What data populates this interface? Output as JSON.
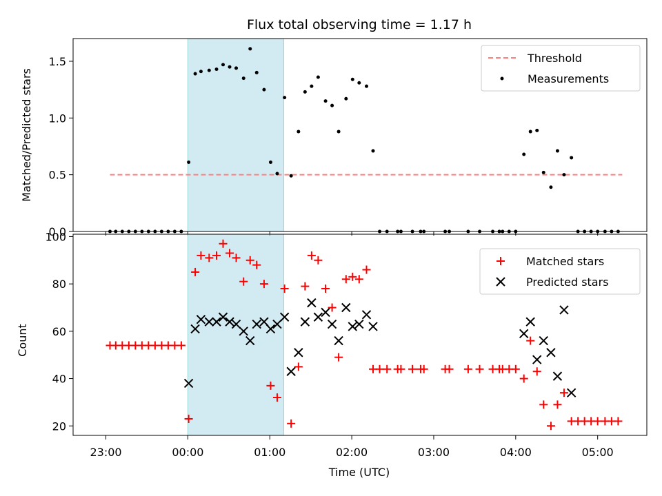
{
  "title": "Flux total observing time = 1.17 h",
  "xlabel": "Time (UTC)",
  "x_ticks": [
    "23:00",
    "00:00",
    "01:00",
    "02:00",
    "03:00",
    "04:00",
    "05:00"
  ],
  "colors": {
    "threshold": "#ff7f7f",
    "measurements": "#000000",
    "matched": "#ff0000",
    "predicted": "#000000",
    "highlight": "#add8e6"
  },
  "chart_data": [
    {
      "type": "scatter",
      "ylabel": "Matched/Predicted stars",
      "ylim": [
        0,
        1.7
      ],
      "y_ticks": [
        "0.0",
        "0.5",
        "1.0",
        "1.5"
      ],
      "y_tick_values": [
        0,
        0.5,
        1.0,
        1.5
      ],
      "xlim_hours": [
        -1.4,
        5.6
      ],
      "highlight_span_hours": [
        0.0,
        1.17
      ],
      "legend": {
        "placement": "top-right",
        "entries": [
          "Threshold",
          "Measurements"
        ]
      },
      "threshold": {
        "name": "Threshold",
        "value": 0.5,
        "x_range_hours": [
          -0.95,
          5.3
        ]
      },
      "series": [
        {
          "name": "Measurements",
          "points": [
            [
              -0.95,
              0
            ],
            [
              -0.88,
              0
            ],
            [
              -0.8,
              0
            ],
            [
              -0.72,
              0
            ],
            [
              -0.64,
              0
            ],
            [
              -0.56,
              0
            ],
            [
              -0.48,
              0
            ],
            [
              -0.4,
              0
            ],
            [
              -0.32,
              0
            ],
            [
              -0.24,
              0
            ],
            [
              -0.16,
              0
            ],
            [
              -0.08,
              0
            ],
            [
              0.01,
              0.61
            ],
            [
              0.09,
              1.39
            ],
            [
              0.16,
              1.41
            ],
            [
              0.26,
              1.42
            ],
            [
              0.35,
              1.43
            ],
            [
              0.43,
              1.47
            ],
            [
              0.51,
              1.45
            ],
            [
              0.59,
              1.44
            ],
            [
              0.68,
              1.35
            ],
            [
              0.76,
              1.61
            ],
            [
              0.84,
              1.4
            ],
            [
              0.93,
              1.25
            ],
            [
              1.01,
              0.61
            ],
            [
              1.09,
              0.51
            ],
            [
              1.18,
              1.18
            ],
            [
              1.26,
              0.49
            ],
            [
              1.35,
              0.88
            ],
            [
              1.43,
              1.23
            ],
            [
              1.51,
              1.28
            ],
            [
              1.59,
              1.36
            ],
            [
              1.68,
              1.15
            ],
            [
              1.76,
              1.11
            ],
            [
              1.84,
              0.88
            ],
            [
              1.93,
              1.17
            ],
            [
              2.01,
              1.34
            ],
            [
              2.09,
              1.31
            ],
            [
              2.18,
              1.28
            ],
            [
              2.26,
              0.71
            ],
            [
              2.34,
              0
            ],
            [
              2.43,
              0
            ],
            [
              2.56,
              0
            ],
            [
              2.6,
              0
            ],
            [
              2.74,
              0
            ],
            [
              2.84,
              0
            ],
            [
              2.88,
              0
            ],
            [
              3.14,
              0
            ],
            [
              3.19,
              0
            ],
            [
              3.42,
              0
            ],
            [
              3.56,
              0
            ],
            [
              3.72,
              0
            ],
            [
              3.8,
              0
            ],
            [
              3.84,
              0
            ],
            [
              3.92,
              0
            ],
            [
              4.0,
              0
            ],
            [
              4.1,
              0.68
            ],
            [
              4.18,
              0.88
            ],
            [
              4.26,
              0.89
            ],
            [
              4.34,
              0.52
            ],
            [
              4.43,
              0.39
            ],
            [
              4.51,
              0.71
            ],
            [
              4.59,
              0.5
            ],
            [
              4.68,
              0.65
            ],
            [
              4.76,
              0
            ],
            [
              4.84,
              0
            ],
            [
              4.92,
              0
            ],
            [
              5.0,
              0
            ],
            [
              5.09,
              0
            ],
            [
              5.17,
              0
            ],
            [
              5.25,
              0
            ]
          ]
        }
      ]
    },
    {
      "type": "scatter",
      "ylabel": "Count",
      "ylim": [
        16,
        101
      ],
      "y_ticks": [
        "20",
        "40",
        "60",
        "80",
        "100"
      ],
      "y_tick_values": [
        20,
        40,
        60,
        80,
        100
      ],
      "xlim_hours": [
        -1.4,
        5.6
      ],
      "highlight_span_hours": [
        0.0,
        1.17
      ],
      "legend": {
        "placement": "top-right",
        "entries": [
          "Matched stars",
          "Predicted stars"
        ]
      },
      "series": [
        {
          "name": "Matched stars",
          "marker": "plus",
          "points": [
            [
              -0.95,
              54
            ],
            [
              -0.88,
              54
            ],
            [
              -0.8,
              54
            ],
            [
              -0.72,
              54
            ],
            [
              -0.64,
              54
            ],
            [
              -0.56,
              54
            ],
            [
              -0.48,
              54
            ],
            [
              -0.4,
              54
            ],
            [
              -0.32,
              54
            ],
            [
              -0.24,
              54
            ],
            [
              -0.16,
              54
            ],
            [
              -0.08,
              54
            ],
            [
              0.01,
              23
            ],
            [
              0.09,
              85
            ],
            [
              0.16,
              92
            ],
            [
              0.26,
              91
            ],
            [
              0.35,
              92
            ],
            [
              0.43,
              97
            ],
            [
              0.51,
              93
            ],
            [
              0.59,
              91
            ],
            [
              0.68,
              81
            ],
            [
              0.76,
              90
            ],
            [
              0.84,
              88
            ],
            [
              0.93,
              80
            ],
            [
              1.01,
              37
            ],
            [
              1.09,
              32
            ],
            [
              1.18,
              78
            ],
            [
              1.26,
              21
            ],
            [
              1.35,
              45
            ],
            [
              1.43,
              79
            ],
            [
              1.51,
              92
            ],
            [
              1.59,
              90
            ],
            [
              1.68,
              78
            ],
            [
              1.76,
              70
            ],
            [
              1.84,
              49
            ],
            [
              1.93,
              82
            ],
            [
              2.01,
              83
            ],
            [
              2.09,
              82
            ],
            [
              2.18,
              86
            ],
            [
              2.26,
              44
            ],
            [
              2.34,
              44
            ],
            [
              2.43,
              44
            ],
            [
              2.56,
              44
            ],
            [
              2.6,
              44
            ],
            [
              2.74,
              44
            ],
            [
              2.84,
              44
            ],
            [
              2.88,
              44
            ],
            [
              3.14,
              44
            ],
            [
              3.19,
              44
            ],
            [
              3.42,
              44
            ],
            [
              3.56,
              44
            ],
            [
              3.72,
              44
            ],
            [
              3.8,
              44
            ],
            [
              3.84,
              44
            ],
            [
              3.92,
              44
            ],
            [
              4.0,
              44
            ],
            [
              4.1,
              40
            ],
            [
              4.18,
              56
            ],
            [
              4.26,
              43
            ],
            [
              4.34,
              29
            ],
            [
              4.43,
              20
            ],
            [
              4.51,
              29
            ],
            [
              4.59,
              34
            ],
            [
              4.68,
              22
            ],
            [
              4.76,
              22
            ],
            [
              4.84,
              22
            ],
            [
              4.92,
              22
            ],
            [
              5.0,
              22
            ],
            [
              5.09,
              22
            ],
            [
              5.17,
              22
            ],
            [
              5.25,
              22
            ]
          ]
        },
        {
          "name": "Predicted stars",
          "marker": "x",
          "points": [
            [
              0.01,
              38
            ],
            [
              0.09,
              61
            ],
            [
              0.16,
              65
            ],
            [
              0.26,
              64
            ],
            [
              0.35,
              64
            ],
            [
              0.43,
              66
            ],
            [
              0.51,
              64
            ],
            [
              0.59,
              63
            ],
            [
              0.68,
              60
            ],
            [
              0.76,
              56
            ],
            [
              0.84,
              63
            ],
            [
              0.93,
              64
            ],
            [
              1.01,
              61
            ],
            [
              1.09,
              63
            ],
            [
              1.18,
              66
            ],
            [
              1.26,
              43
            ],
            [
              1.35,
              51
            ],
            [
              1.43,
              64
            ],
            [
              1.51,
              72
            ],
            [
              1.59,
              66
            ],
            [
              1.68,
              68
            ],
            [
              1.76,
              63
            ],
            [
              1.84,
              56
            ],
            [
              1.93,
              70
            ],
            [
              2.01,
              62
            ],
            [
              2.09,
              63
            ],
            [
              2.18,
              67
            ],
            [
              2.26,
              62
            ],
            [
              4.1,
              59
            ],
            [
              4.18,
              64
            ],
            [
              4.26,
              48
            ],
            [
              4.34,
              56
            ],
            [
              4.43,
              51
            ],
            [
              4.51,
              41
            ],
            [
              4.59,
              69
            ],
            [
              4.68,
              34
            ]
          ]
        }
      ]
    }
  ]
}
